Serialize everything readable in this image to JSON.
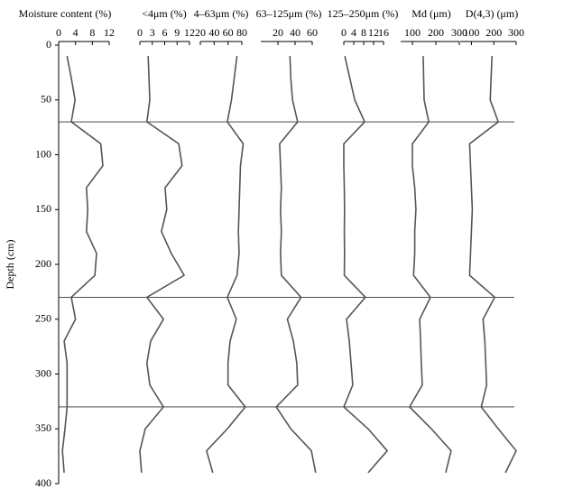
{
  "chart_data": {
    "type": "profile",
    "y_label": "Depth (cm)",
    "ylim": [
      0,
      400
    ],
    "yticks": [
      0,
      50,
      100,
      150,
      200,
      250,
      300,
      350,
      400
    ],
    "boundaries": [
      70,
      230,
      330
    ],
    "depth": [
      10,
      30,
      50,
      70,
      90,
      110,
      130,
      150,
      170,
      190,
      210,
      230,
      250,
      270,
      290,
      310,
      330,
      350,
      370,
      390
    ],
    "color": "#555555",
    "panels": [
      {
        "title": "Moisture content (%)",
        "xlim": [
          0,
          12
        ],
        "xticks": [
          0,
          4,
          8,
          12
        ],
        "values": [
          2,
          3,
          3.9,
          3,
          10,
          10.5,
          6.6,
          6.9,
          6.6,
          9,
          8.6,
          3,
          4,
          1.3,
          2,
          2,
          2,
          1.5,
          0.9,
          1.3
        ]
      },
      {
        "title": "<4μm (%)",
        "xlim": [
          0,
          12
        ],
        "xticks": [
          0,
          3,
          6,
          9,
          12
        ],
        "values": [
          2,
          2.2,
          2.4,
          1.7,
          9.4,
          10.2,
          6.1,
          6.5,
          5.2,
          7.6,
          10.7,
          1.7,
          5.7,
          2.6,
          1.7,
          2.4,
          5.7,
          1.3,
          0,
          0.4
        ]
      },
      {
        "title": "4–63μm (%)",
        "xlim": [
          20,
          80
        ],
        "xticks": [
          20,
          40,
          60,
          80
        ],
        "values": [
          73,
          69,
          65,
          59,
          82,
          78,
          77,
          76,
          75,
          76,
          73,
          59,
          72,
          63,
          60,
          60,
          85,
          59,
          29,
          38
        ]
      },
      {
        "title": "63–125μm (%)",
        "xlim": [
          0,
          60
        ],
        "xticks": [
          20,
          40,
          60
        ],
        "values": [
          34,
          35,
          37,
          43,
          22,
          23,
          24,
          23,
          24,
          23,
          24,
          47,
          31,
          38,
          42,
          43,
          18,
          35,
          59,
          64
        ]
      },
      {
        "title": "125–250μm (%)",
        "xlim": [
          0,
          16
        ],
        "xticks": [
          0,
          4,
          8,
          12,
          16
        ],
        "values": [
          0.4,
          2.4,
          4.4,
          8.4,
          0,
          0,
          0.2,
          0.3,
          0.2,
          0.3,
          0.2,
          8.7,
          1.1,
          2.2,
          2.9,
          3.6,
          0,
          9.8,
          17.5,
          9.8
        ]
      },
      {
        "title": "Md (μm)",
        "xlim": [
          50,
          300
        ],
        "xticks": [
          100,
          200,
          300
        ],
        "values": [
          146,
          148,
          150,
          170,
          100,
          100,
          110,
          115,
          110,
          110,
          105,
          177,
          131,
          135,
          138,
          142,
          88,
          181,
          265,
          242
        ]
      },
      {
        "title": "D(4,3) (μm)",
        "xlim": [
          50,
          300
        ],
        "xticks": [
          100,
          200,
          300
        ],
        "values": [
          192,
          188,
          184,
          220,
          92,
          96,
          100,
          104,
          100,
          96,
          92,
          204,
          152,
          160,
          164,
          168,
          144,
          220,
          300,
          252
        ]
      }
    ]
  }
}
